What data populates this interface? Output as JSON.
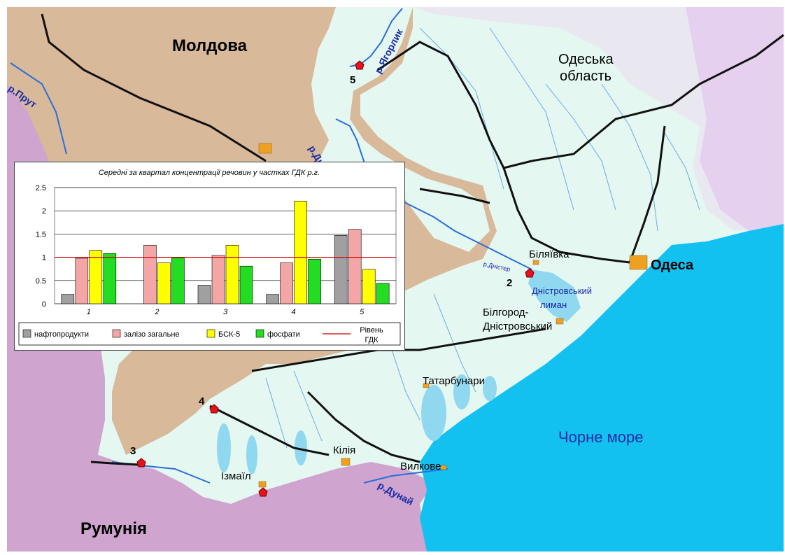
{
  "map": {
    "labels": {
      "moldova": "Молдова",
      "odesa_region_line1": "Одеська",
      "odesa_region_line2": "область",
      "romania": "Румунія",
      "black_sea": "Чорне море",
      "odesa": "Одеса",
      "bilyaivka": "Біляївка",
      "bilhorod_line1": "Білгород-",
      "bilhorod_line2": "Дністровський",
      "liman_line1": "Дністровський",
      "liman_line2": "лиман",
      "tatarbunary": "Татарбунари",
      "kiliya": "Кілія",
      "izmail": "Ізмаїл",
      "vylkove": "Вилкове",
      "river_prut": "р.Прут",
      "river_yahorlyk": "р.Ягорлик",
      "river_dnister": "р.Дністер",
      "river_dunai": "р.Дунай",
      "river_dnister_small": "р.Дністер"
    },
    "stations": [
      "1",
      "2",
      "3",
      "4",
      "5"
    ],
    "colors": {
      "sea": "#12c1f0",
      "land": "#e4f7f0",
      "moldova": "#d8b99a",
      "romania": "#cfa4cf",
      "right_region": "#ecdcf2",
      "river": "#2a6fd8",
      "road": "#111111",
      "station": "#e8101a",
      "city": "#f0a020"
    }
  },
  "chart_data": {
    "type": "bar",
    "title": "Середні за квартал концентрації речовин у частках ГДК р.г.",
    "categories": [
      "1",
      "2",
      "3",
      "4",
      "5"
    ],
    "ylim": [
      0,
      2.5
    ],
    "yticks": [
      "0",
      "0.5",
      "1",
      "1.5",
      "2",
      "2.5"
    ],
    "reference_line": {
      "value": 1,
      "name": "Рівень ГДК",
      "color": "#cc0000"
    },
    "series": [
      {
        "name": "нафтопродукти",
        "color": "#a0a0a0",
        "values": [
          0.2,
          0,
          0.4,
          0.2,
          1.47
        ]
      },
      {
        "name": "залізо загальне",
        "color": "#f4a6a6",
        "values": [
          0.98,
          1.26,
          1.04,
          0.88,
          1.6
        ]
      },
      {
        "name": "БСК-5",
        "color": "#ffff00",
        "values": [
          1.15,
          0.88,
          1.26,
          2.21,
          0.74
        ]
      },
      {
        "name": "фосфати",
        "color": "#22dd22",
        "values": [
          1.08,
          0.99,
          0.81,
          0.96,
          0.44
        ]
      }
    ],
    "legend_position": "bottom"
  }
}
